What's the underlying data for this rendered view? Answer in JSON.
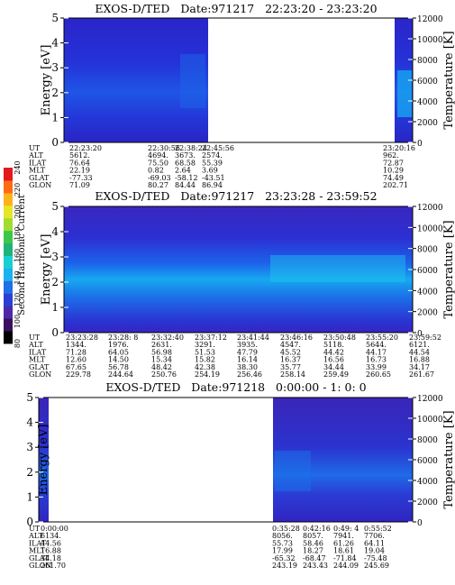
{
  "colorbar": {
    "label": "Second Harmonic Current",
    "ticks": [
      "80",
      "100",
      "120",
      "140",
      "160",
      "180",
      "200",
      "220",
      "240"
    ],
    "colors": [
      "#000000",
      "#3a0f5e",
      "#4b2aa8",
      "#2b3fd6",
      "#1f6fe8",
      "#19b2ee",
      "#18d0d2",
      "#1fb37a",
      "#3cc74a",
      "#a0dd30",
      "#e6e629",
      "#ffb21a",
      "#ff6a12",
      "#e31a1c"
    ]
  },
  "chart_data": [
    {
      "type": "heatmap",
      "title": "EXOS-D/TED   Date:971217   22:23:20 - 23:23:20",
      "ylabel": "Energy [eV]",
      "y2label": "Temperature [K]",
      "ylim": [
        0,
        5
      ],
      "y2lim": [
        0,
        12000
      ],
      "yticks": [
        "0",
        "1",
        "2",
        "3",
        "4",
        "5"
      ],
      "y2ticks": [
        "0",
        "2000",
        "4000",
        "6000",
        "8000",
        "10000",
        "12000"
      ],
      "data_gaps": [
        [
          "22:48:30",
          "23:20:00"
        ]
      ],
      "footer": {
        "labels": [
          "UT",
          "ALT",
          "ILAT",
          "MLT",
          "GLAT",
          "GLON"
        ],
        "columns": [
          {
            "ut": "22:23:20",
            "vals": [
              "5612.",
              "76.64",
              "22.19",
              "-77.33",
              "71.09"
            ]
          },
          {
            "ut": "22:30:56",
            "vals": [
              "4694.",
              "75.50",
              "0.82",
              "-69.03",
              "80.27"
            ]
          },
          {
            "ut": "22:38:24",
            "vals": [
              "3673.",
              "68.58",
              "2.64",
              "-58.12",
              "84.44"
            ]
          },
          {
            "ut": "22:45:56",
            "vals": [
              "2574.",
              "55.39",
              "3.69",
              "-43.51",
              "86.94"
            ]
          },
          {
            "ut": "23:20:16",
            "vals": [
              "962.",
              "72.87",
              "10.29",
              "74.49",
              "202.71"
            ]
          }
        ]
      }
    },
    {
      "type": "heatmap",
      "title": "EXOS-D/TED   Date:971217   23:23:28 - 23:59:52",
      "ylabel": "Energy [eV]",
      "y2label": "Temperature [K]",
      "ylim": [
        0,
        5
      ],
      "y2lim": [
        0,
        12000
      ],
      "yticks": [
        "0",
        "1",
        "2",
        "3",
        "4",
        "5"
      ],
      "y2ticks": [
        "0",
        "2000",
        "4000",
        "6000",
        "8000",
        "10000",
        "12000"
      ],
      "footer": {
        "labels": [
          "UT",
          "ALT",
          "ILAT",
          "MLT",
          "GLAT",
          "GLON"
        ],
        "columns": [
          {
            "ut": "23:23:28",
            "vals": [
              "1344.",
              "71.28",
              "12.60",
              "67.65",
              "229.78"
            ]
          },
          {
            "ut": "23:28: 8",
            "vals": [
              "1976.",
              "64.05",
              "14.50",
              "56.78",
              "244.64"
            ]
          },
          {
            "ut": "23:32:40",
            "vals": [
              "2631.",
              "56.98",
              "15.34",
              "48.42",
              "250.76"
            ]
          },
          {
            "ut": "23:37:12",
            "vals": [
              "3291.",
              "51.53",
              "15.82",
              "42.38",
              "254.19"
            ]
          },
          {
            "ut": "23:41:44",
            "vals": [
              "3935.",
              "47.79",
              "16.14",
              "38.30",
              "256.46"
            ]
          },
          {
            "ut": "23:46:16",
            "vals": [
              "4547.",
              "45.52",
              "16.37",
              "35.77",
              "258.14"
            ]
          },
          {
            "ut": "23:50:48",
            "vals": [
              "5118.",
              "44.42",
              "16.56",
              "34.44",
              "259.49"
            ]
          },
          {
            "ut": "23:55:20",
            "vals": [
              "5644.",
              "44.17",
              "16.73",
              "33.99",
              "260.65"
            ]
          },
          {
            "ut": "23:59:52",
            "vals": [
              "6121.",
              "44.54",
              "16.88",
              "34.17",
              "261.67"
            ]
          }
        ]
      }
    },
    {
      "type": "heatmap",
      "title": "EXOS-D/TED   Date:971218   0:00:00 - 1: 0: 0",
      "ylabel": "Energy [eV]",
      "y2label": "Temperature [K]",
      "ylim": [
        0,
        5
      ],
      "y2lim": [
        0,
        12000
      ],
      "yticks": [
        "0",
        "1",
        "2",
        "3",
        "4",
        "5"
      ],
      "y2ticks": [
        "0",
        "2000",
        "4000",
        "6000",
        "8000",
        "10000",
        "12000"
      ],
      "data_gaps": [
        [
          "0:02:00",
          "0:35:20"
        ]
      ],
      "footer": {
        "labels": [
          "UT",
          "ALT",
          "ILAT",
          "MLT",
          "GLAT",
          "GLON"
        ],
        "columns": [
          {
            "ut": "0:00:00",
            "vals": [
              "6134.",
              "44.56",
              "16.88",
              "34.18",
              "261.70"
            ]
          },
          {
            "ut": "0:35:28",
            "vals": [
              "8056.",
              "55.73",
              "17.99",
              "-65.32",
              "243.19"
            ]
          },
          {
            "ut": "0:42:16",
            "vals": [
              "8057.",
              "58.46",
              "18.27",
              "-68.47",
              "243.43"
            ]
          },
          {
            "ut": "0:49: 4",
            "vals": [
              "7941.",
              "61.26",
              "18.61",
              "-71.84",
              "244.09"
            ]
          },
          {
            "ut": "0:55:52",
            "vals": [
              "7706.",
              "64.11",
              "19.04",
              "-75.48",
              "245.69"
            ]
          }
        ]
      }
    }
  ]
}
